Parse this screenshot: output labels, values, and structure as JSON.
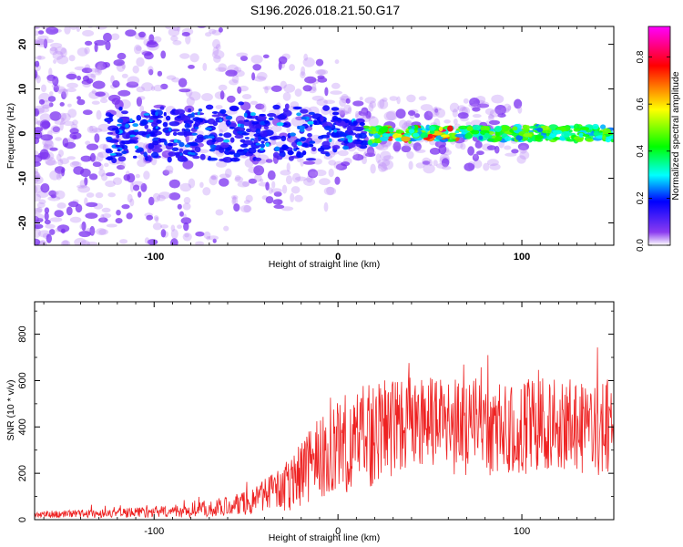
{
  "title": "S196.2026.018.21.50.G17",
  "colors": {
    "snr_line": "#ee2222",
    "spectrum_base": "#8a3bf0"
  },
  "chart_data": [
    {
      "type": "heatmap",
      "name": "spectrogram",
      "xlabel": "Height of straight line (km)",
      "ylabel": "Frequency (Hz)",
      "xlim": [
        -165,
        150
      ],
      "ylim": [
        -25,
        24
      ],
      "xticks": [
        -100,
        0,
        100
      ],
      "xtick_labels": [
        "-100",
        "0",
        "100"
      ],
      "yticks": [
        -20,
        -10,
        0,
        10,
        20
      ],
      "ytick_labels": [
        "-20",
        "-10",
        "0",
        "10",
        "20"
      ],
      "colorbar": {
        "label": "Normalized spectral amplitude",
        "range": [
          0,
          0.93
        ],
        "ticks": [
          0.0,
          0.2,
          0.4,
          0.6,
          0.8
        ],
        "tick_labels": [
          "0.0",
          "0.2",
          "0.4",
          "0.6",
          "0.8"
        ],
        "colormap": [
          "#ffffff",
          "#8a3bf0",
          "#0000ff",
          "#00ffff",
          "#00ff00",
          "#ffff00",
          "#ff8000",
          "#ff0000",
          "#ff00ff"
        ]
      },
      "signal_band": {
        "frequency_center_hz": 0,
        "max_amplitude_x_km": [
          20,
          150
        ]
      }
    },
    {
      "type": "line",
      "name": "snr",
      "xlabel": "Height of straight line (km)",
      "ylabel": "SNR (10 * v/v)",
      "xlim": [
        -165,
        150
      ],
      "ylim": [
        0,
        940
      ],
      "xticks": [
        -100,
        0,
        100
      ],
      "xtick_labels": [
        "-100",
        "0",
        "100"
      ],
      "yticks": [
        0,
        200,
        400,
        600,
        800
      ],
      "ytick_labels": [
        "0",
        "200",
        "400",
        "600",
        "800"
      ],
      "envelope": {
        "x": [
          -165,
          -120,
          -80,
          -50,
          -30,
          -15,
          0,
          15,
          30,
          60,
          100,
          150
        ],
        "mean": [
          22,
          28,
          40,
          70,
          130,
          230,
          320,
          360,
          400,
          400,
          400,
          400
        ],
        "amplitude": [
          15,
          20,
          30,
          50,
          100,
          170,
          210,
          230,
          220,
          210,
          210,
          210
        ]
      }
    }
  ]
}
